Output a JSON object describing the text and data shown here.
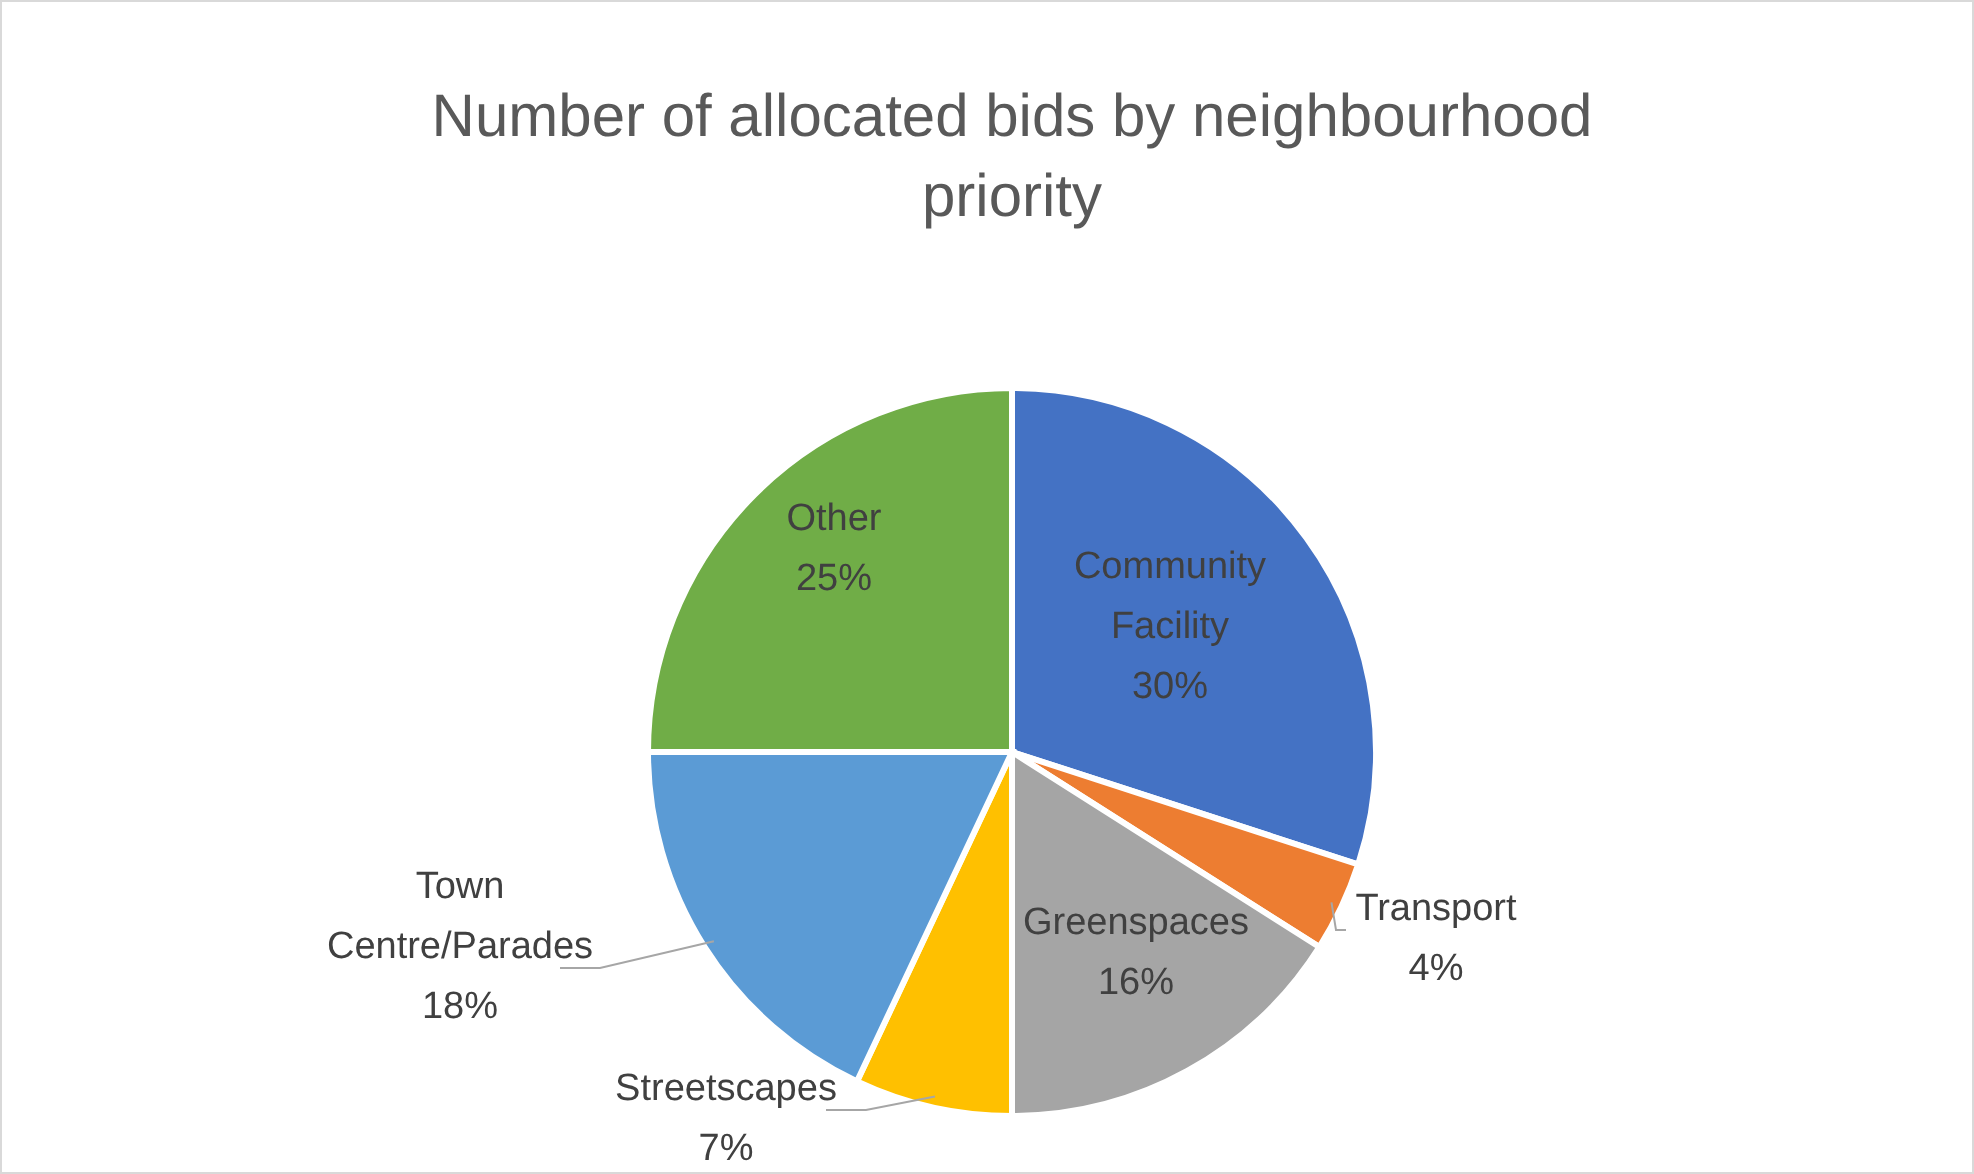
{
  "chart_data": {
    "type": "pie",
    "title": "Number of allocated bids by neighbourhood priority",
    "categories": [
      "Community Facility",
      "Transport",
      "Greenspaces",
      "Streetscapes",
      "Town Centre/Parades",
      "Other"
    ],
    "values": [
      30,
      4,
      16,
      7,
      18,
      25
    ],
    "colors": [
      "#4472c4",
      "#ed7d31",
      "#a5a5a5",
      "#ffc000",
      "#5b9bd5",
      "#70ad47"
    ],
    "value_labels": [
      "30%",
      "4%",
      "16%",
      "7%",
      "18%",
      "25%"
    ]
  }
}
